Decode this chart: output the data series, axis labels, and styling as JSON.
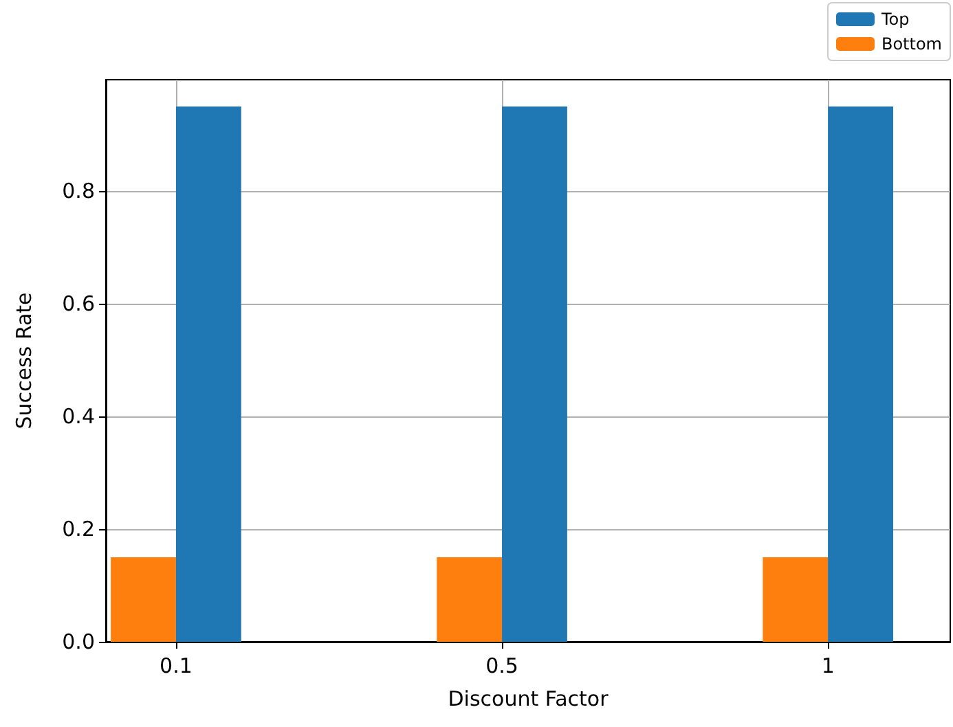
{
  "chart_data": {
    "type": "bar",
    "xlabel": "Discount Factor",
    "ylabel": "Success Rate",
    "categories": [
      "0.1",
      "0.5",
      "1"
    ],
    "series": [
      {
        "name": "Bottom",
        "color": "#ff7f0e",
        "values": [
          0.15,
          0.15,
          0.15
        ]
      },
      {
        "name": "Top",
        "color": "#1f77b4",
        "values": [
          0.95,
          0.95,
          0.95
        ]
      }
    ],
    "ylim": [
      0,
      0.9975
    ],
    "yticks": [
      {
        "value": 0,
        "label": "0.0"
      },
      {
        "value": 0.2,
        "label": "0.2"
      },
      {
        "value": 0.4,
        "label": "0.4"
      },
      {
        "value": 0.6,
        "label": "0.6"
      },
      {
        "value": 0.8,
        "label": "0.8"
      }
    ],
    "grid": true,
    "legend": "top right"
  }
}
